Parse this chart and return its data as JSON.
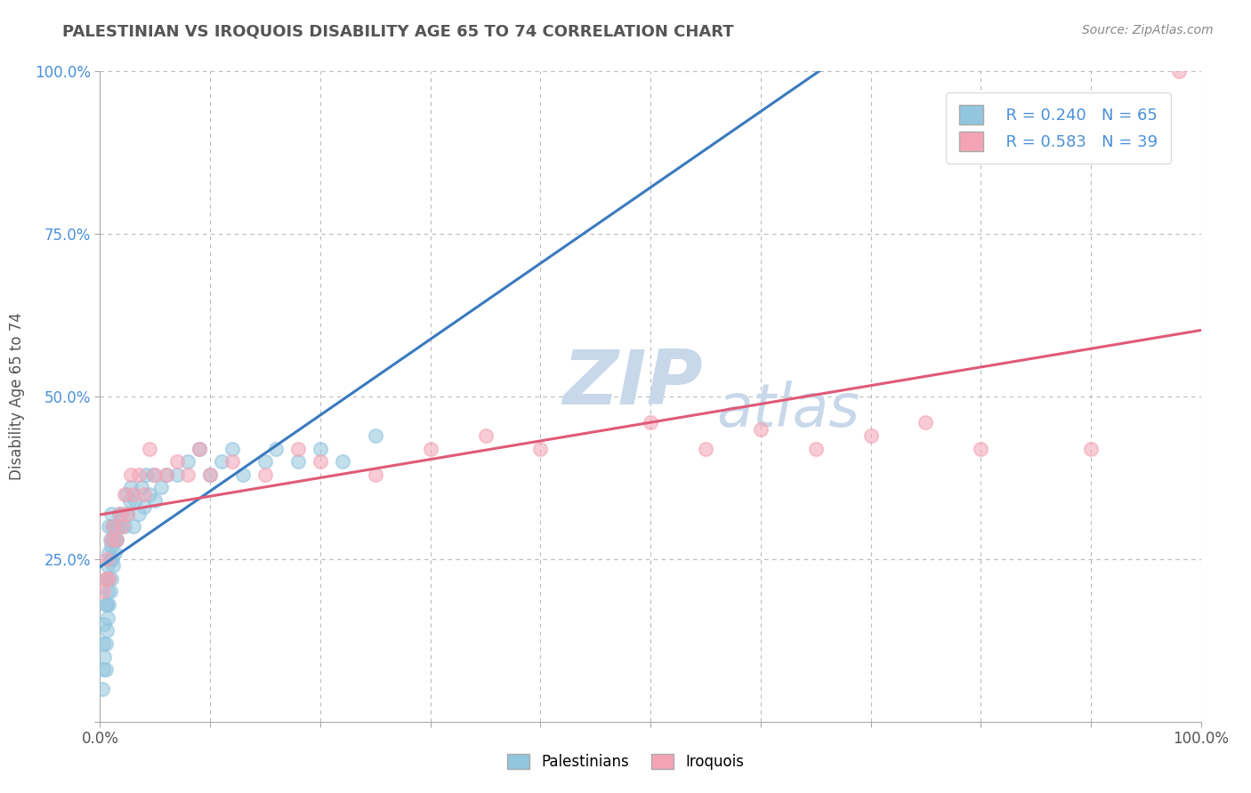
{
  "title": "PALESTINIAN VS IROQUOIS DISABILITY AGE 65 TO 74 CORRELATION CHART",
  "source_text": "Source: ZipAtlas.com",
  "ylabel": "Disability Age 65 to 74",
  "xlim": [
    0.0,
    1.0
  ],
  "ylim": [
    0.0,
    1.0
  ],
  "xticks": [
    0.0,
    0.1,
    0.2,
    0.3,
    0.4,
    0.5,
    0.6,
    0.7,
    0.8,
    0.9,
    1.0
  ],
  "xticklabels": [
    "0.0%",
    "",
    "",
    "",
    "",
    "",
    "",
    "",
    "",
    "",
    "100.0%"
  ],
  "yticks": [
    0.0,
    0.25,
    0.5,
    0.75,
    1.0
  ],
  "yticklabels": [
    "",
    "25.0%",
    "50.0%",
    "75.0%",
    "100.0%"
  ],
  "palestinians_R": 0.24,
  "palestinians_N": 65,
  "iroquois_R": 0.583,
  "iroquois_N": 39,
  "blue_color": "#92c5de",
  "pink_color": "#f4a3b5",
  "blue_line_color": "#3a7abf",
  "pink_line_color": "#e05a78",
  "watermark_top": "ZIP",
  "watermark_bottom": "atlas",
  "watermark_color": "#c8d8ea",
  "background_color": "#ffffff",
  "grid_color": "#bbbbbb",
  "title_color": "#555555",
  "axis_label_color": "#555555",
  "tick_label_color_y": "#4a90d9",
  "tick_label_color_x": "#555555",
  "palestinians_x": [
    0.002,
    0.003,
    0.003,
    0.004,
    0.004,
    0.005,
    0.005,
    0.005,
    0.006,
    0.006,
    0.006,
    0.007,
    0.007,
    0.007,
    0.008,
    0.008,
    0.008,
    0.008,
    0.009,
    0.009,
    0.009,
    0.01,
    0.01,
    0.01,
    0.011,
    0.011,
    0.012,
    0.012,
    0.013,
    0.013,
    0.014,
    0.015,
    0.016,
    0.017,
    0.018,
    0.02,
    0.022,
    0.024,
    0.025,
    0.027,
    0.028,
    0.03,
    0.032,
    0.035,
    0.038,
    0.04,
    0.042,
    0.045,
    0.048,
    0.05,
    0.055,
    0.06,
    0.07,
    0.08,
    0.09,
    0.1,
    0.11,
    0.12,
    0.13,
    0.15,
    0.16,
    0.18,
    0.2,
    0.22,
    0.25
  ],
  "palestinians_y": [
    0.05,
    0.08,
    0.12,
    0.1,
    0.15,
    0.08,
    0.12,
    0.18,
    0.14,
    0.18,
    0.22,
    0.16,
    0.2,
    0.24,
    0.18,
    0.22,
    0.26,
    0.3,
    0.2,
    0.25,
    0.28,
    0.22,
    0.27,
    0.32,
    0.25,
    0.3,
    0.24,
    0.28,
    0.26,
    0.3,
    0.28,
    0.28,
    0.3,
    0.32,
    0.3,
    0.32,
    0.3,
    0.35,
    0.32,
    0.34,
    0.36,
    0.3,
    0.34,
    0.32,
    0.36,
    0.33,
    0.38,
    0.35,
    0.38,
    0.34,
    0.36,
    0.38,
    0.38,
    0.4,
    0.42,
    0.38,
    0.4,
    0.42,
    0.38,
    0.4,
    0.42,
    0.4,
    0.42,
    0.4,
    0.44
  ],
  "iroquois_x": [
    0.003,
    0.005,
    0.006,
    0.008,
    0.01,
    0.012,
    0.015,
    0.018,
    0.02,
    0.022,
    0.025,
    0.028,
    0.03,
    0.035,
    0.04,
    0.045,
    0.05,
    0.06,
    0.07,
    0.08,
    0.09,
    0.1,
    0.12,
    0.15,
    0.18,
    0.2,
    0.25,
    0.3,
    0.35,
    0.4,
    0.5,
    0.55,
    0.6,
    0.65,
    0.7,
    0.75,
    0.8,
    0.9,
    0.98
  ],
  "iroquois_y": [
    0.2,
    0.22,
    0.25,
    0.22,
    0.28,
    0.3,
    0.28,
    0.32,
    0.3,
    0.35,
    0.32,
    0.38,
    0.35,
    0.38,
    0.35,
    0.42,
    0.38,
    0.38,
    0.4,
    0.38,
    0.42,
    0.38,
    0.4,
    0.38,
    0.42,
    0.4,
    0.38,
    0.42,
    0.44,
    0.42,
    0.46,
    0.42,
    0.45,
    0.42,
    0.44,
    0.46,
    0.42,
    0.42,
    1.0
  ]
}
